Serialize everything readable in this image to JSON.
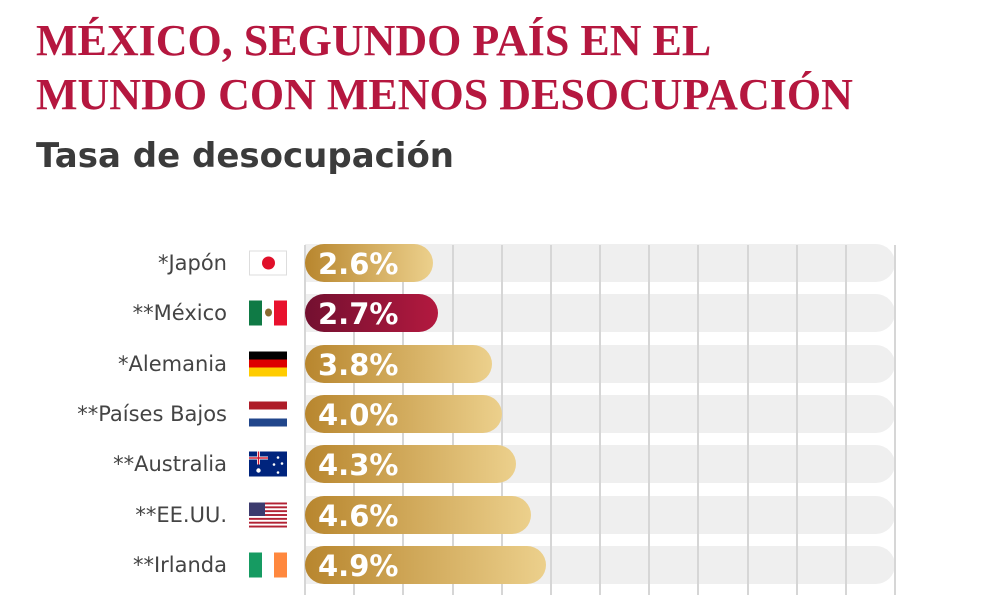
{
  "header": {
    "title_line1": "MÉXICO, SEGUNDO PAÍS EN EL",
    "title_line2": "MUNDO CON MENOS DESOCUPACIÓN",
    "subtitle": "Tasa de desocupación"
  },
  "colors": {
    "title": "#b5173f",
    "bar": "#c9a050",
    "highlight": "#8f1335"
  },
  "chart_data": {
    "type": "bar",
    "orientation": "horizontal",
    "title": "Tasa de desocupación",
    "categories": [
      "*Japón",
      "**México",
      "*Alemania",
      "**Países Bajos",
      "**Australia",
      "**EE.UU.",
      "**Irlanda"
    ],
    "flags": [
      "japan-flag",
      "mexico-flag",
      "germany-flag",
      "netherlands-flag",
      "australia-flag",
      "usa-flag",
      "ireland-flag"
    ],
    "values": [
      2.6,
      2.7,
      3.8,
      4.0,
      4.3,
      4.6,
      4.9
    ],
    "value_labels": [
      "2.6%",
      "2.7%",
      "3.8%",
      "4.0%",
      "4.3%",
      "4.6%",
      "4.9%"
    ],
    "highlight_index": 1,
    "unit": "%",
    "xlim": [
      0,
      12
    ],
    "grid": true
  }
}
